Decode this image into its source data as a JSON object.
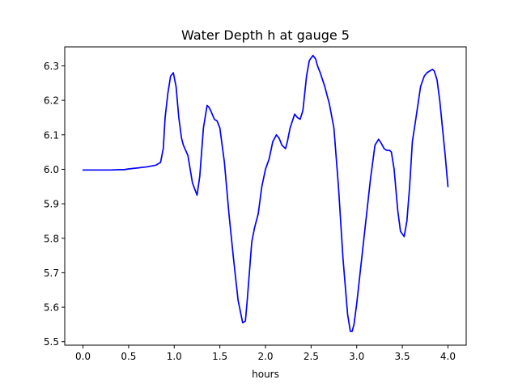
{
  "chart_data": {
    "type": "line",
    "title": "Water Depth h at gauge 5",
    "xlabel": "hours",
    "ylabel": "",
    "xlim": [
      -0.2,
      4.2
    ],
    "ylim": [
      5.49,
      6.355
    ],
    "xticks": [
      0.0,
      0.5,
      1.0,
      1.5,
      2.0,
      2.5,
      3.0,
      3.5,
      4.0
    ],
    "xtick_labels": [
      "0.0",
      "0.5",
      "1.0",
      "1.5",
      "2.0",
      "2.5",
      "3.0",
      "3.5",
      "4.0"
    ],
    "yticks": [
      5.5,
      5.6,
      5.7,
      5.8,
      5.9,
      6.0,
      6.1,
      6.2,
      6.3
    ],
    "ytick_labels": [
      "5.5",
      "5.6",
      "5.7",
      "5.8",
      "5.9",
      "6.0",
      "6.1",
      "6.2",
      "6.3"
    ],
    "grid": false,
    "line_color": "#0000ff",
    "series": [
      {
        "x": [
          0.0,
          0.1,
          0.2,
          0.3,
          0.4,
          0.45,
          0.5,
          0.6,
          0.7,
          0.8,
          0.85,
          0.88,
          0.9,
          0.93,
          0.96,
          0.99,
          1.02,
          1.05,
          1.08,
          1.1,
          1.15,
          1.2,
          1.25,
          1.28,
          1.32,
          1.36,
          1.38,
          1.4,
          1.44,
          1.47,
          1.5,
          1.55,
          1.6,
          1.65,
          1.7,
          1.75,
          1.78,
          1.8,
          1.85,
          1.88,
          1.92,
          1.96,
          2.0,
          2.04,
          2.08,
          2.12,
          2.15,
          2.18,
          2.22,
          2.24,
          2.27,
          2.32,
          2.35,
          2.38,
          2.41,
          2.45,
          2.48,
          2.52,
          2.55,
          2.57,
          2.6,
          2.65,
          2.7,
          2.75,
          2.8,
          2.85,
          2.9,
          2.93,
          2.95,
          2.97,
          3.0,
          3.05,
          3.1,
          3.15,
          3.2,
          3.24,
          3.27,
          3.3,
          3.33,
          3.36,
          3.38,
          3.41,
          3.45,
          3.48,
          3.52,
          3.55,
          3.58,
          3.61,
          3.65,
          3.7,
          3.74,
          3.77,
          3.8,
          3.83,
          3.85,
          3.88,
          3.91,
          3.94,
          3.97,
          4.0
        ],
        "y": [
          5.998,
          5.998,
          5.998,
          5.998,
          5.999,
          5.999,
          6.001,
          6.004,
          6.007,
          6.012,
          6.02,
          6.06,
          6.15,
          6.22,
          6.27,
          6.28,
          6.24,
          6.15,
          6.09,
          6.07,
          6.04,
          5.96,
          5.925,
          5.98,
          6.12,
          6.185,
          6.18,
          6.17,
          6.145,
          6.14,
          6.12,
          6.02,
          5.87,
          5.74,
          5.62,
          5.555,
          5.56,
          5.62,
          5.79,
          5.83,
          5.87,
          5.95,
          6.0,
          6.03,
          6.08,
          6.1,
          6.09,
          6.07,
          6.06,
          6.08,
          6.12,
          6.16,
          6.15,
          6.145,
          6.17,
          6.27,
          6.315,
          6.33,
          6.32,
          6.3,
          6.28,
          6.24,
          6.19,
          6.12,
          5.95,
          5.74,
          5.58,
          5.53,
          5.53,
          5.55,
          5.61,
          5.73,
          5.85,
          5.97,
          6.07,
          6.087,
          6.075,
          6.06,
          6.055,
          6.055,
          6.05,
          6.0,
          5.88,
          5.82,
          5.805,
          5.85,
          5.95,
          6.08,
          6.15,
          6.24,
          6.27,
          6.28,
          6.285,
          6.29,
          6.285,
          6.26,
          6.2,
          6.12,
          6.04,
          5.95
        ]
      }
    ]
  }
}
